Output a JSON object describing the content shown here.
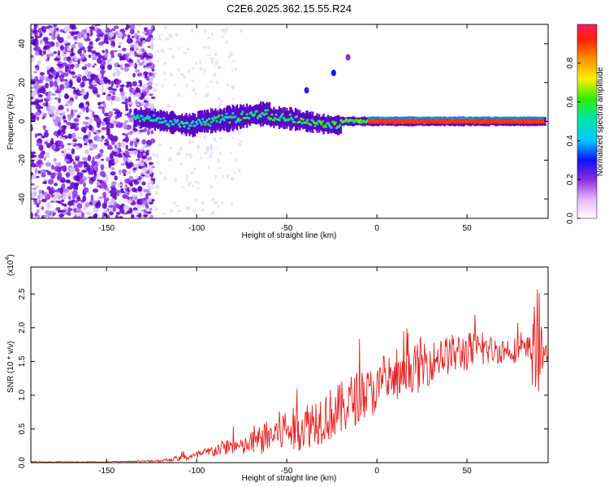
{
  "title": "C2E6.2025.362.15.55.R24",
  "colors": {
    "snr_line": "#e52222",
    "dark_violet": "#5a00c8",
    "light_violet": "#dcc8f5",
    "colorbar_low": "#ffffff",
    "colorbar_high": "#ff1a66"
  },
  "chart_data": [
    {
      "type": "heatmap",
      "panel": "spectrogram",
      "xlabel": "Height of straight line (km)",
      "ylabel": "Frequency (Hz)",
      "xlim": [
        -192,
        95
      ],
      "ylim": [
        -50,
        50
      ],
      "xticks": [
        -150,
        -100,
        -50,
        0,
        50
      ],
      "xtick_labels": [
        "-150",
        "-100",
        "-50",
        "0",
        "50"
      ],
      "yticks": [
        -40,
        -20,
        0,
        20,
        40
      ],
      "ytick_labels": [
        "-40",
        "-20",
        "0",
        "20",
        "40"
      ],
      "colorbar": {
        "label": "Normalized spectral amplitude",
        "range": [
          0,
          1
        ],
        "ticks": [
          0.0,
          0.2,
          0.4,
          0.6,
          0.8
        ],
        "tick_labels": [
          "0.0",
          "0.2",
          "0.4",
          "0.6",
          "0.8"
        ]
      },
      "features": [
        {
          "name": "noise-region",
          "x_range": [
            -192,
            -130
          ],
          "freq_range": [
            -50,
            50
          ],
          "amplitude": 0.1
        },
        {
          "name": "main-line",
          "x_range": [
            -135,
            93
          ],
          "freq_center": 0,
          "amplitude_range": [
            0.3,
            0.95
          ]
        },
        {
          "name": "side-feature-1",
          "x": -24,
          "freq": 25,
          "amplitude": 0.15
        },
        {
          "name": "side-feature-2",
          "x": -39,
          "freq": 16,
          "amplitude": 0.12
        },
        {
          "name": "side-feature-3",
          "x": -16,
          "freq": 33,
          "amplitude": 0.05
        }
      ]
    },
    {
      "type": "line",
      "panel": "snr",
      "title": "",
      "xlabel": "Height of straight line (km)",
      "ylabel": "SNR (10 * v/v)",
      "exponent_label": "(x10",
      "exponent_power": "4",
      "exponent_close": ")",
      "xlim": [
        -192,
        95
      ],
      "ylim": [
        0,
        2.9
      ],
      "xticks": [
        -150,
        -100,
        -50,
        0,
        50
      ],
      "xtick_labels": [
        "-150",
        "-100",
        "-50",
        "0",
        "50"
      ],
      "yticks": [
        0.0,
        0.5,
        1.0,
        1.5,
        2.0,
        2.5
      ],
      "ytick_labels": [
        "0.0",
        "0.5",
        "1.0",
        "1.5",
        "2.0",
        "2.5"
      ],
      "series": [
        {
          "name": "SNR",
          "x": [
            -192,
            -170,
            -150,
            -140,
            -130,
            -120,
            -110,
            -100,
            -95,
            -90,
            -85,
            -80,
            -75,
            -70,
            -65,
            -60,
            -55,
            -50,
            -45,
            -40,
            -35,
            -30,
            -25,
            -20,
            -15,
            -10,
            -5,
            0,
            5,
            10,
            15,
            20,
            25,
            30,
            35,
            40,
            45,
            50,
            55,
            60,
            65,
            70,
            75,
            80,
            85,
            88,
            90,
            93,
            95
          ],
          "mean": [
            0.01,
            0.01,
            0.01,
            0.015,
            0.02,
            0.03,
            0.06,
            0.1,
            0.14,
            0.18,
            0.22,
            0.26,
            0.22,
            0.28,
            0.33,
            0.38,
            0.45,
            0.5,
            0.48,
            0.55,
            0.62,
            0.68,
            0.72,
            0.78,
            0.9,
            0.98,
            1.02,
            1.08,
            1.15,
            1.2,
            1.25,
            1.38,
            1.45,
            1.5,
            1.55,
            1.6,
            1.62,
            1.65,
            1.65,
            1.68,
            1.66,
            1.67,
            1.68,
            1.66,
            1.65,
            1.62,
            1.6,
            1.62,
            1.62
          ],
          "spread": [
            0.005,
            0.005,
            0.005,
            0.008,
            0.01,
            0.02,
            0.04,
            0.06,
            0.08,
            0.1,
            0.12,
            0.14,
            0.12,
            0.18,
            0.22,
            0.25,
            0.3,
            0.35,
            0.32,
            0.35,
            0.38,
            0.4,
            0.4,
            0.42,
            0.4,
            0.4,
            0.38,
            0.36,
            0.35,
            0.32,
            0.3,
            0.32,
            0.45,
            0.3,
            0.28,
            0.3,
            0.3,
            0.3,
            0.28,
            0.25,
            0.2,
            0.2,
            0.2,
            0.18,
            0.25,
            0.9,
            0.6,
            0.15,
            0.1
          ]
        }
      ]
    }
  ]
}
